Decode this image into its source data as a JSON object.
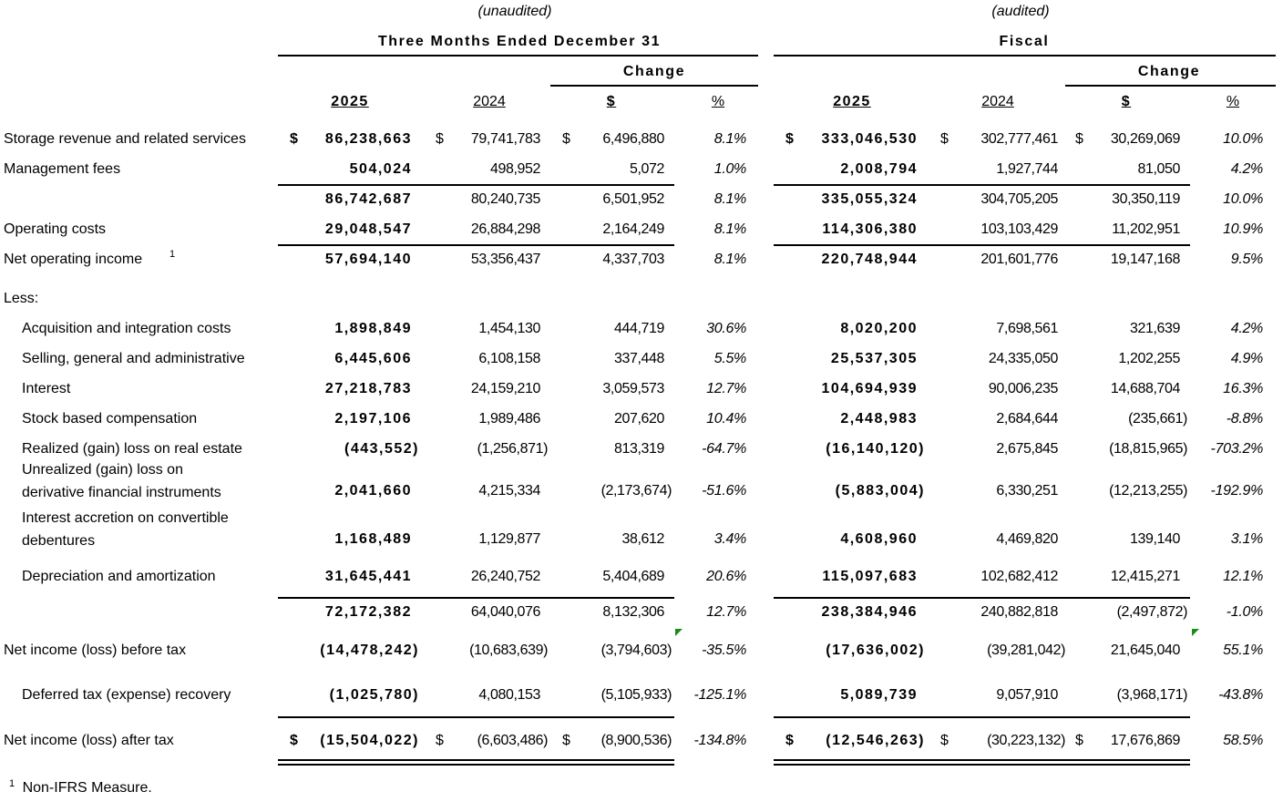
{
  "header": {
    "left_note": "(unaudited)",
    "right_note": "(audited)",
    "left_title": "Three Months Ended December 31",
    "right_title": "Fiscal",
    "change_label": "Change",
    "columns": [
      "2025",
      "2024",
      "$",
      "%"
    ]
  },
  "rows": [
    {
      "label": "Storage revenue and related services",
      "dollar": true,
      "q": [
        "86,238,663",
        "79,741,783",
        "6,496,880",
        "8.1%"
      ],
      "f": [
        "333,046,530",
        "302,777,461",
        "30,269,069",
        "10.0%"
      ]
    },
    {
      "label": "Management fees",
      "q": [
        "504,024",
        "498,952",
        "5,072",
        "1.0%"
      ],
      "f": [
        "2,008,794",
        "1,927,744",
        "81,050",
        "4.2%"
      ]
    },
    {
      "label": "",
      "q": [
        "86,742,687",
        "80,240,735",
        "6,501,952",
        "8.1%"
      ],
      "f": [
        "335,055,324",
        "304,705,205",
        "30,350,119",
        "10.0%"
      ]
    },
    {
      "label": "Operating costs",
      "q": [
        "29,048,547",
        "26,884,298",
        "2,164,249",
        "8.1%"
      ],
      "f": [
        "114,306,380",
        "103,103,429",
        "11,202,951",
        "10.9%"
      ]
    },
    {
      "label": "Net operating income",
      "sup": "1",
      "q": [
        "57,694,140",
        "53,356,437",
        "4,337,703",
        "8.1%"
      ],
      "f": [
        "220,748,944",
        "201,601,776",
        "19,147,168",
        "9.5%"
      ]
    },
    {
      "label": "Less:"
    },
    {
      "label": "Acquisition and integration costs",
      "indent": true,
      "q": [
        "1,898,849",
        "1,454,130",
        "444,719",
        "30.6%"
      ],
      "f": [
        "8,020,200",
        "7,698,561",
        "321,639",
        "4.2%"
      ]
    },
    {
      "label": "Selling, general and administrative",
      "indent": true,
      "q": [
        "6,445,606",
        "6,108,158",
        "337,448",
        "5.5%"
      ],
      "f": [
        "25,537,305",
        "24,335,050",
        "1,202,255",
        "4.9%"
      ]
    },
    {
      "label": "Interest",
      "indent": true,
      "q": [
        "27,218,783",
        "24,159,210",
        "3,059,573",
        "12.7%"
      ],
      "f": [
        "104,694,939",
        "90,006,235",
        "14,688,704",
        "16.3%"
      ]
    },
    {
      "label": "Stock based compensation",
      "indent": true,
      "q": [
        "2,197,106",
        "1,989,486",
        "207,620",
        "10.4%"
      ],
      "f": [
        "2,448,983",
        "2,684,644",
        "(235,661)",
        "-8.8%"
      ]
    },
    {
      "label": "Realized (gain) loss on real estate",
      "indent": true,
      "q": [
        "(443,552)",
        "(1,256,871)",
        "813,319",
        "-64.7%"
      ],
      "f": [
        "(16,140,120)",
        "2,675,845",
        "(18,815,965)",
        "-703.2%"
      ]
    },
    {
      "label": "Unrealized (gain) loss on",
      "label2": "derivative financial instruments",
      "indent": true,
      "q": [
        "2,041,660",
        "4,215,334",
        "(2,173,674)",
        "-51.6%"
      ],
      "f": [
        "(5,883,004)",
        "6,330,251",
        "(12,213,255)",
        "-192.9%"
      ]
    },
    {
      "label": "Interest accretion on convertible",
      "label2": "debentures",
      "indent": true,
      "q": [
        "1,168,489",
        "1,129,877",
        "38,612",
        "3.4%"
      ],
      "f": [
        "4,608,960",
        "4,469,820",
        "139,140",
        "3.1%"
      ]
    },
    {
      "label": "Depreciation and amortization",
      "indent": true,
      "q": [
        "31,645,441",
        "26,240,752",
        "5,404,689",
        "20.6%"
      ],
      "f": [
        "115,097,683",
        "102,682,412",
        "12,415,271",
        "12.1%"
      ]
    },
    {
      "label": "",
      "q": [
        "72,172,382",
        "64,040,076",
        "8,132,306",
        "12.7%"
      ],
      "f": [
        "238,384,946",
        "240,882,818",
        "(2,497,872)",
        "-1.0%"
      ]
    },
    {
      "label": "Net income (loss) before tax",
      "q": [
        "(14,478,242)",
        "(10,683,639)",
        "(3,794,603)",
        "-35.5%"
      ],
      "f": [
        "(17,636,002)",
        "(39,281,042)",
        "21,645,040",
        "55.1%"
      ]
    },
    {
      "label": "Deferred tax (expense) recovery",
      "indent": true,
      "q": [
        "(1,025,780)",
        "4,080,153",
        "(5,105,933)",
        "-125.1%"
      ],
      "f": [
        "5,089,739",
        "9,057,910",
        "(3,968,171)",
        "-43.8%"
      ]
    },
    {
      "label": "Net income (loss) after tax",
      "dollar": true,
      "q": [
        "(15,504,022)",
        "(6,603,486)",
        "(8,900,536)",
        "-134.8%"
      ],
      "f": [
        "(12,546,263)",
        "(30,223,132)",
        "17,676,869",
        "58.5%"
      ]
    }
  ],
  "currency_symbol": "$",
  "footnote": {
    "marker": "1",
    "text": "Non-IFRS Measure."
  },
  "colors": {
    "comment_marker": "#1a8c1a"
  }
}
